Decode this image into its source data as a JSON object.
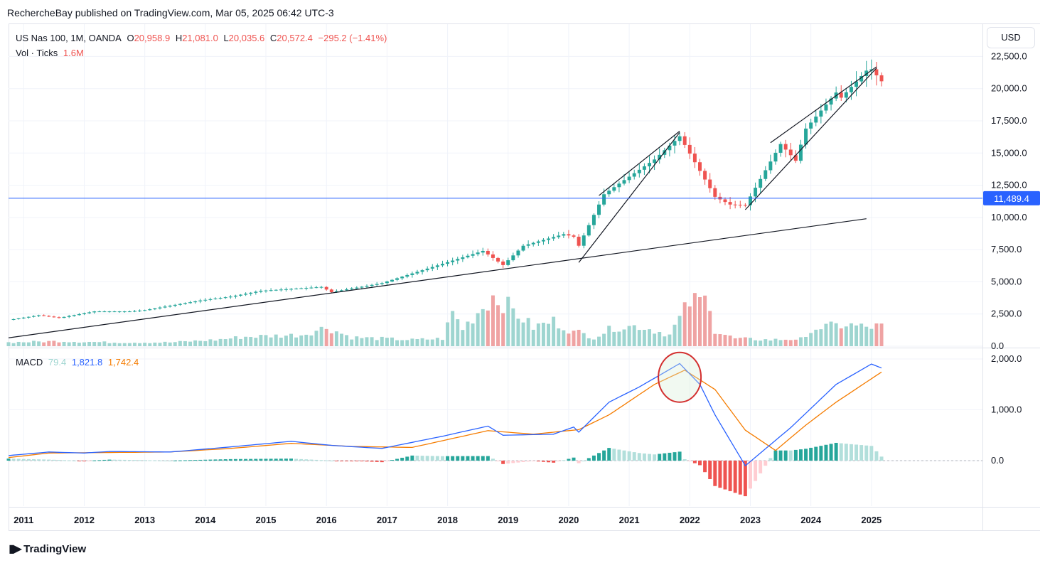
{
  "header": {
    "published": "RechercheBay published on TradingView.com, Mar 05, 2025 06:42 UTC-3"
  },
  "legend": {
    "symbol": "US Nas 100, 1M, OANDA",
    "o_label": "O",
    "o_value": "20,958.9",
    "h_label": "H",
    "h_value": "21,081.0",
    "l_label": "L",
    "l_value": "20,035.6",
    "c_label": "C",
    "c_value": "20,572.4",
    "change": "−295.2 (−1.41%)",
    "vol_label": "Vol · Ticks",
    "vol_value": "1.6M",
    "macd_label": "MACD",
    "macd_hist": "79.4",
    "macd_line": "1,821.8",
    "macd_signal": "1,742.4"
  },
  "currency_button": "USD",
  "price_line": {
    "label": "11,489.4",
    "value": 11489.4,
    "color": "#2962ff"
  },
  "brand": {
    "name": "TradingView"
  },
  "colors": {
    "up": "#26a69a",
    "down": "#ef5350",
    "vol_up": "#9ed5d0",
    "vol_down": "#efa3a3",
    "macd": "#2962ff",
    "signal": "#f57c00",
    "hist_up_strong": "#26a69a",
    "hist_up_weak": "#b2dfdb",
    "hist_down_strong": "#ef5350",
    "hist_down_weak": "#ffcdd2"
  },
  "chart_data": [
    {
      "type": "candlestick",
      "interval": "1M",
      "x_range": [
        "2010-10",
        "2026-11"
      ],
      "ylim": [
        0,
        22800
      ],
      "price_ticks": [
        "22,500.0",
        "20,000.0",
        "17,500.0",
        "15,000.0",
        "12,500.0",
        "10,000.0",
        "7,500.0",
        "5,000.0",
        "2,500.0",
        "0.0"
      ],
      "price_tick_values": [
        22500,
        20000,
        17500,
        15000,
        12500,
        10000,
        7500,
        5000,
        2500,
        0
      ],
      "x_ticks": [
        "2011",
        "2012",
        "2013",
        "2014",
        "2015",
        "2016",
        "2017",
        "2018",
        "2019",
        "2020",
        "2021",
        "2022",
        "2023",
        "2024",
        "2025"
      ],
      "close_anchors": [
        [
          "2010-11",
          2100
        ],
        [
          "2011-04",
          2400
        ],
        [
          "2011-08",
          2200
        ],
        [
          "2012-03",
          2700
        ],
        [
          "2012-10",
          2700
        ],
        [
          "2013-01",
          2800
        ],
        [
          "2013-12",
          3550
        ],
        [
          "2014-06",
          3850
        ],
        [
          "2014-12",
          4300
        ],
        [
          "2015-06",
          4450
        ],
        [
          "2015-12",
          4600
        ],
        [
          "2016-02",
          4200
        ],
        [
          "2016-12",
          4900
        ],
        [
          "2017-12",
          6400
        ],
        [
          "2018-08",
          7400
        ],
        [
          "2018-12",
          6300
        ],
        [
          "2019-04",
          7800
        ],
        [
          "2019-12",
          8700
        ],
        [
          "2020-02",
          8500
        ],
        [
          "2020-03",
          7800
        ],
        [
          "2020-08",
          11800
        ],
        [
          "2020-12",
          12900
        ],
        [
          "2021-06",
          14500
        ],
        [
          "2021-11",
          16300
        ],
        [
          "2022-06",
          11600
        ],
        [
          "2022-09",
          11000
        ],
        [
          "2022-12",
          10950
        ],
        [
          "2023-07",
          15700
        ],
        [
          "2023-10",
          14400
        ],
        [
          "2023-12",
          16900
        ],
        [
          "2024-06",
          19700
        ],
        [
          "2024-07",
          19300
        ],
        [
          "2024-12",
          21400
        ],
        [
          "2025-01",
          21500
        ],
        [
          "2025-03",
          20572.4
        ]
      ],
      "trendlines": [
        {
          "name": "long-term-support",
          "from": [
            "2010-10",
            650
          ],
          "to": [
            "2024-12",
            9900
          ]
        },
        {
          "name": "rising-wedge-2020-lower",
          "from": [
            "2020-03",
            6500
          ],
          "to": [
            "2021-11",
            16600
          ]
        },
        {
          "name": "rising-wedge-2020-upper",
          "from": [
            "2020-07",
            11700
          ],
          "to": [
            "2021-11",
            16700
          ]
        },
        {
          "name": "rising-wedge-2023-lower",
          "from": [
            "2022-12",
            10600
          ],
          "to": [
            "2025-02",
            21600
          ]
        },
        {
          "name": "rising-wedge-2023-upper",
          "from": [
            "2023-05",
            15800
          ],
          "to": [
            "2025-02",
            21700
          ]
        }
      ]
    },
    {
      "type": "bar",
      "name": "Vol · Ticks",
      "value_anchors": [
        [
          "2010-10",
          300
        ],
        [
          "2011-08",
          400
        ],
        [
          "2012-06",
          300
        ],
        [
          "2013-06",
          300
        ],
        [
          "2014-03",
          500
        ],
        [
          "2014-09",
          750
        ],
        [
          "2015-08",
          900
        ],
        [
          "2016-01",
          1500
        ],
        [
          "2016-06",
          700
        ],
        [
          "2017-06",
          500
        ],
        [
          "2017-12",
          600
        ],
        [
          "2018-02",
          2700
        ],
        [
          "2018-04",
          1400
        ],
        [
          "2018-10",
          4000
        ],
        [
          "2018-12",
          3500
        ],
        [
          "2019-06",
          1500
        ],
        [
          "2019-10",
          2000
        ],
        [
          "2020-02",
          1100
        ],
        [
          "2020-03",
          1100
        ],
        [
          "2020-06",
          700
        ],
        [
          "2020-10",
          1500
        ],
        [
          "2021-03",
          1600
        ],
        [
          "2021-09",
          900
        ],
        [
          "2022-01",
          3500
        ],
        [
          "2022-05",
          3700
        ],
        [
          "2022-06",
          1200
        ],
        [
          "2022-10",
          600
        ],
        [
          "2023-05",
          500
        ],
        [
          "2023-12",
          600
        ],
        [
          "2024-01",
          1400
        ],
        [
          "2024-08",
          1700
        ],
        [
          "2024-12",
          1500
        ],
        [
          "2025-03",
          1600
        ]
      ],
      "ylim": [
        0,
        6500
      ]
    },
    {
      "type": "line",
      "name": "MACD",
      "ylim": [
        -720,
        2000
      ],
      "y_ticks": [
        "2,000.0",
        "1,000.0",
        "0.0"
      ],
      "y_tick_values": [
        2000,
        1000,
        0
      ],
      "macd_anchors": [
        [
          "2010-10",
          100
        ],
        [
          "2011-06",
          170
        ],
        [
          "2012-01",
          150
        ],
        [
          "2012-06",
          180
        ],
        [
          "2013-06",
          170
        ],
        [
          "2014-06",
          270
        ],
        [
          "2015-06",
          380
        ],
        [
          "2016-02",
          300
        ],
        [
          "2016-12",
          240
        ],
        [
          "2017-12",
          480
        ],
        [
          "2018-09",
          680
        ],
        [
          "2018-12",
          500
        ],
        [
          "2019-10",
          520
        ],
        [
          "2020-02",
          660
        ],
        [
          "2020-03",
          560
        ],
        [
          "2020-09",
          1150
        ],
        [
          "2021-03",
          1450
        ],
        [
          "2021-11",
          1910
        ],
        [
          "2022-03",
          1500
        ],
        [
          "2022-06",
          900
        ],
        [
          "2022-12",
          -100
        ],
        [
          "2023-03",
          150
        ],
        [
          "2023-09",
          650
        ],
        [
          "2024-06",
          1500
        ],
        [
          "2025-01",
          1900
        ],
        [
          "2025-03",
          1821.8
        ]
      ],
      "signal_anchors": [
        [
          "2010-10",
          60
        ],
        [
          "2011-06",
          150
        ],
        [
          "2012-06",
          160
        ],
        [
          "2013-06",
          170
        ],
        [
          "2014-06",
          240
        ],
        [
          "2015-06",
          340
        ],
        [
          "2016-06",
          280
        ],
        [
          "2017-06",
          260
        ],
        [
          "2018-09",
          590
        ],
        [
          "2019-06",
          520
        ],
        [
          "2020-03",
          610
        ],
        [
          "2020-09",
          900
        ],
        [
          "2021-06",
          1500
        ],
        [
          "2021-12",
          1780
        ],
        [
          "2022-06",
          1400
        ],
        [
          "2022-12",
          600
        ],
        [
          "2023-06",
          200
        ],
        [
          "2023-12",
          700
        ],
        [
          "2024-06",
          1150
        ],
        [
          "2025-03",
          1742.4
        ]
      ]
    }
  ]
}
